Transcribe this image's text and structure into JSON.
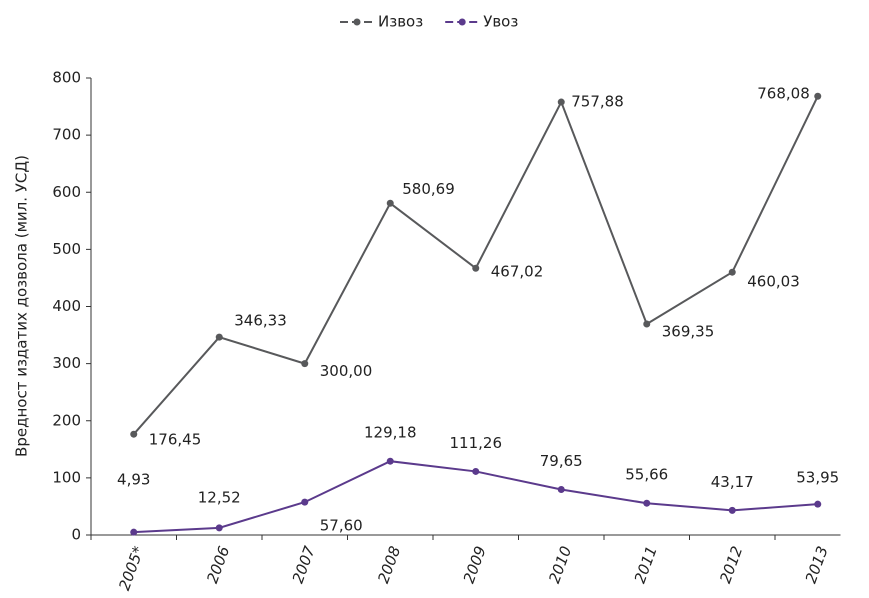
{
  "chart_data": {
    "type": "line",
    "y_axis_label": "Вредност издатих дозвола (мил. УСД)",
    "categories": [
      "2005*",
      "2006",
      "2007",
      "2008",
      "2009",
      "2010",
      "2011",
      "2012",
      "2013"
    ],
    "series": [
      {
        "name": "Извоз",
        "color": "#58595b",
        "values": [
          176.45,
          346.33,
          300.0,
          580.69,
          467.02,
          757.88,
          369.35,
          460.03,
          768.08
        ],
        "value_labels": [
          "176,45",
          "346,33",
          "300,00",
          "580,69",
          "467,02",
          "757,88",
          "369,35",
          "460,03",
          "768,08"
        ]
      },
      {
        "name": "Увоз",
        "color": "#5b3a8c",
        "values": [
          4.93,
          12.52,
          57.6,
          129.18,
          111.26,
          79.65,
          55.66,
          43.17,
          53.95
        ],
        "value_labels": [
          "4,93",
          "12,52",
          "57,60",
          "129,18",
          "111,26",
          "79,65",
          "55,66",
          "43,17",
          "53,95"
        ]
      }
    ],
    "ylim": [
      0,
      800
    ],
    "yticks": [
      0,
      100,
      200,
      300,
      400,
      500,
      600,
      700,
      800
    ],
    "legend": "top"
  }
}
